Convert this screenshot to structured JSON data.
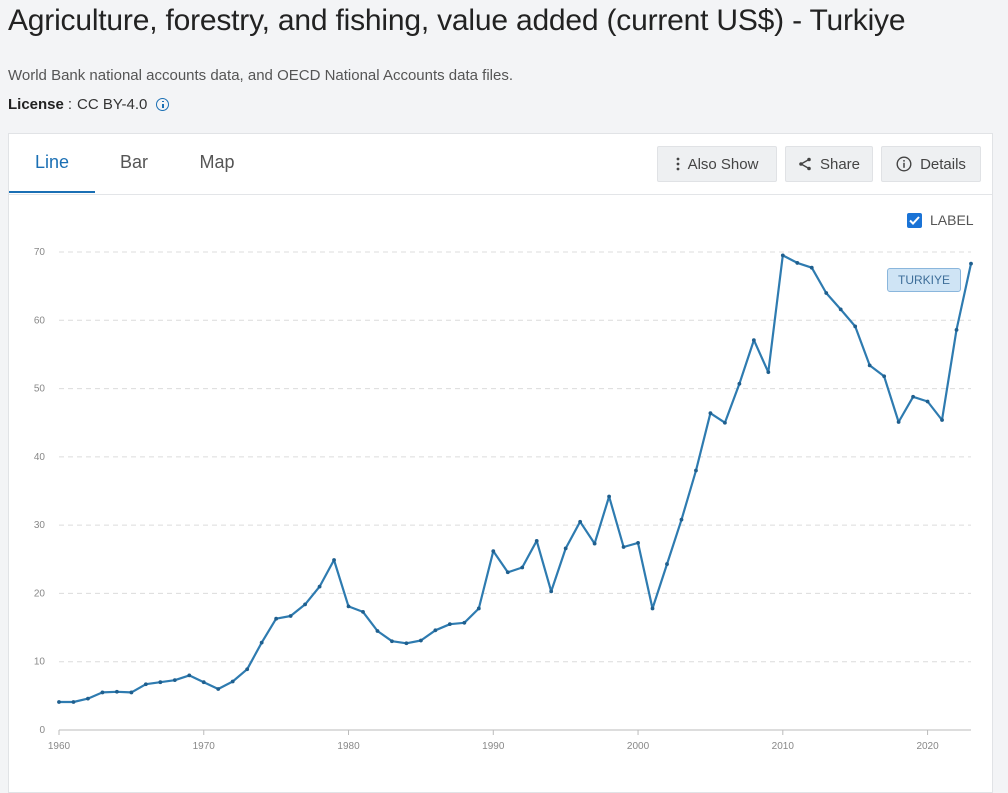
{
  "header": {
    "title": "Agriculture, forestry, and fishing, value added (current US$) - Turkiye",
    "source": "World Bank national accounts data, and OECD National Accounts data files.",
    "license_label": "License",
    "license_value": "CC BY-4.0"
  },
  "tabs": [
    {
      "label": "Line",
      "active": true
    },
    {
      "label": "Bar",
      "active": false
    },
    {
      "label": "Map",
      "active": false
    }
  ],
  "toolbar": {
    "also_show": "Also Show",
    "share": "Share",
    "details": "Details"
  },
  "label_toggle": {
    "label": "LABEL",
    "checked": true
  },
  "colors": {
    "accent": "#1a6fb4",
    "series": "#2e7bb0",
    "grid": "#dcdcdc"
  },
  "chart_data": {
    "type": "line",
    "title": "",
    "xlabel": "",
    "ylabel": "",
    "xlim": [
      1960,
      2023
    ],
    "ylim": [
      0,
      70
    ],
    "xticks": [
      1960,
      1970,
      1980,
      1990,
      2000,
      2010,
      2020
    ],
    "yticks": [
      0,
      10,
      20,
      30,
      40,
      50,
      60,
      70
    ],
    "grid": "horizontal-dashed",
    "series": [
      {
        "name": "TURKIYE",
        "x": [
          1960,
          1961,
          1962,
          1963,
          1964,
          1965,
          1966,
          1967,
          1968,
          1969,
          1970,
          1971,
          1972,
          1973,
          1974,
          1975,
          1976,
          1977,
          1978,
          1979,
          1980,
          1981,
          1982,
          1983,
          1984,
          1985,
          1986,
          1987,
          1988,
          1989,
          1990,
          1991,
          1992,
          1993,
          1994,
          1995,
          1996,
          1997,
          1998,
          1999,
          2000,
          2001,
          2002,
          2003,
          2004,
          2005,
          2006,
          2007,
          2008,
          2009,
          2010,
          2011,
          2012,
          2013,
          2014,
          2015,
          2016,
          2017,
          2018,
          2019,
          2020,
          2021,
          2022,
          2023
        ],
        "values": [
          4.1,
          4.1,
          4.6,
          5.5,
          5.6,
          5.5,
          6.7,
          7.0,
          7.3,
          8.0,
          7.0,
          6.0,
          7.1,
          8.9,
          12.8,
          16.3,
          16.7,
          18.4,
          21.0,
          24.9,
          18.1,
          17.3,
          14.5,
          13.0,
          12.7,
          13.1,
          14.6,
          15.5,
          15.7,
          17.8,
          26.2,
          23.1,
          23.8,
          27.7,
          20.3,
          26.6,
          30.5,
          27.3,
          34.2,
          26.8,
          27.4,
          17.8,
          24.3,
          30.8,
          38.0,
          46.4,
          45.0,
          50.7,
          57.1,
          52.4,
          69.5,
          68.4,
          67.7,
          64.0,
          61.6,
          59.1,
          53.4,
          51.8,
          45.1,
          48.8,
          48.1,
          45.4,
          58.6,
          68.3
        ]
      }
    ]
  }
}
